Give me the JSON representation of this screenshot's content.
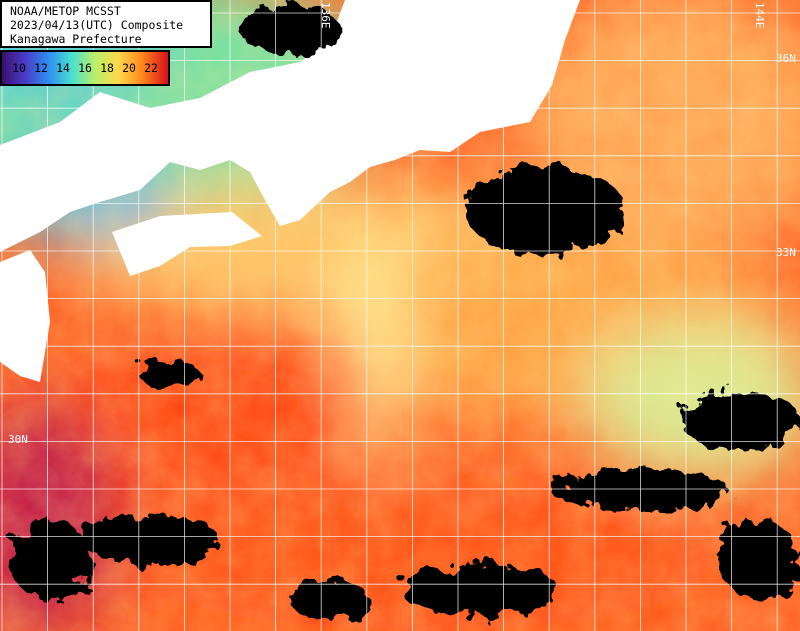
{
  "header": {
    "lines": [
      "NOAA/METOP MCSST",
      "2023/04/13(UTC) Composite",
      "Kanagawa Prefecture"
    ]
  },
  "colorbar": {
    "labels": [
      10,
      12,
      14,
      16,
      18,
      20,
      22
    ]
  },
  "map": {
    "lon_labels": [
      "136E",
      "144E"
    ],
    "lat_labels": [
      "36N",
      "33N",
      "30N"
    ]
  }
}
